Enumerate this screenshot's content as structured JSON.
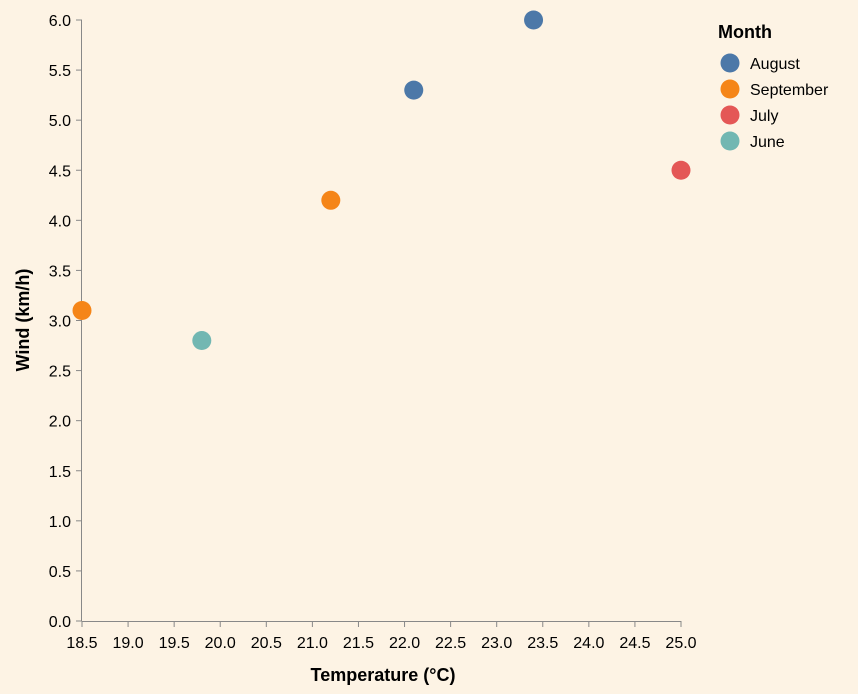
{
  "chart_data": {
    "type": "scatter",
    "title": "",
    "xlabel": "Temperature (°C)",
    "ylabel": "Wind (km/h)",
    "xlim": [
      18.5,
      25.0
    ],
    "ylim": [
      0.0,
      6.0
    ],
    "x_ticks": [
      "18.5",
      "19.0",
      "19.5",
      "20.0",
      "20.5",
      "21.0",
      "21.5",
      "22.0",
      "22.5",
      "23.0",
      "23.5",
      "24.0",
      "24.5",
      "25.0"
    ],
    "y_ticks": [
      "0.0",
      "0.5",
      "1.0",
      "1.5",
      "2.0",
      "2.5",
      "3.0",
      "3.5",
      "4.0",
      "4.5",
      "5.0",
      "5.5",
      "6.0"
    ],
    "grid": false,
    "legend": {
      "title": "Month",
      "placement": "top-right",
      "entries": [
        {
          "name": "August",
          "color": "#4c78a8"
        },
        {
          "name": "September",
          "color": "#f58518"
        },
        {
          "name": "July",
          "color": "#e45756"
        },
        {
          "name": "June",
          "color": "#72b7b2"
        }
      ]
    },
    "series": [
      {
        "name": "August",
        "color": "#4c78a8",
        "points": [
          {
            "x": 22.1,
            "y": 5.3
          },
          {
            "x": 23.4,
            "y": 6.0
          }
        ]
      },
      {
        "name": "September",
        "color": "#f58518",
        "points": [
          {
            "x": 18.5,
            "y": 3.1
          },
          {
            "x": 21.2,
            "y": 4.2
          }
        ]
      },
      {
        "name": "July",
        "color": "#e45756",
        "points": [
          {
            "x": 25.0,
            "y": 4.5
          }
        ]
      },
      {
        "name": "June",
        "color": "#72b7b2",
        "points": [
          {
            "x": 19.8,
            "y": 2.8
          }
        ]
      }
    ]
  }
}
